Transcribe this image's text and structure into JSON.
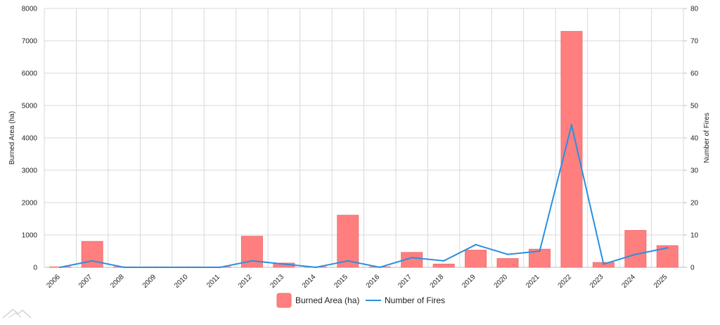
{
  "chart_data": {
    "type": "bar",
    "categories": [
      "2006",
      "2007",
      "2008",
      "2009",
      "2010",
      "2011",
      "2012",
      "2013",
      "2014",
      "2015",
      "2016",
      "2017",
      "2018",
      "2019",
      "2020",
      "2021",
      "2022",
      "2023",
      "2024",
      "2025"
    ],
    "series": [
      {
        "name": "Burned Area (ha)",
        "type": "bar",
        "axis": "left",
        "color": "#ff7f7f",
        "values": [
          0,
          800,
          0,
          0,
          0,
          0,
          960,
          130,
          0,
          1610,
          0,
          460,
          100,
          530,
          270,
          560,
          7290,
          150,
          1140,
          670
        ]
      },
      {
        "name": "Number of Fires",
        "type": "line",
        "axis": "right",
        "color": "#2b8fe0",
        "values": [
          0,
          2,
          0,
          0,
          0,
          0,
          2,
          1,
          0,
          2,
          0,
          3,
          2,
          7,
          4,
          5,
          44,
          1,
          4,
          6
        ]
      }
    ],
    "ylabel": "Burned Area (ha)",
    "y2label": "Number of Fires",
    "ylim": [
      0,
      8000
    ],
    "y2lim": [
      0,
      80
    ],
    "yticks": [
      0,
      1000,
      2000,
      3000,
      4000,
      5000,
      6000,
      7000,
      8000
    ],
    "y2ticks": [
      0,
      10,
      20,
      30,
      40,
      50,
      60,
      70,
      80
    ],
    "grid": true,
    "legend_position": "bottom-center"
  },
  "legend": {
    "bar_label": "Burned Area (ha)",
    "line_label": "Number of Fires"
  },
  "colors": {
    "bar_fill": "#ff7f7f",
    "bar_stroke": "#f07070",
    "line": "#2b8fe0",
    "grid": "#d9d9d9",
    "logo": "#cfcfcf"
  },
  "logo_icon": "mountain-logo-icon"
}
